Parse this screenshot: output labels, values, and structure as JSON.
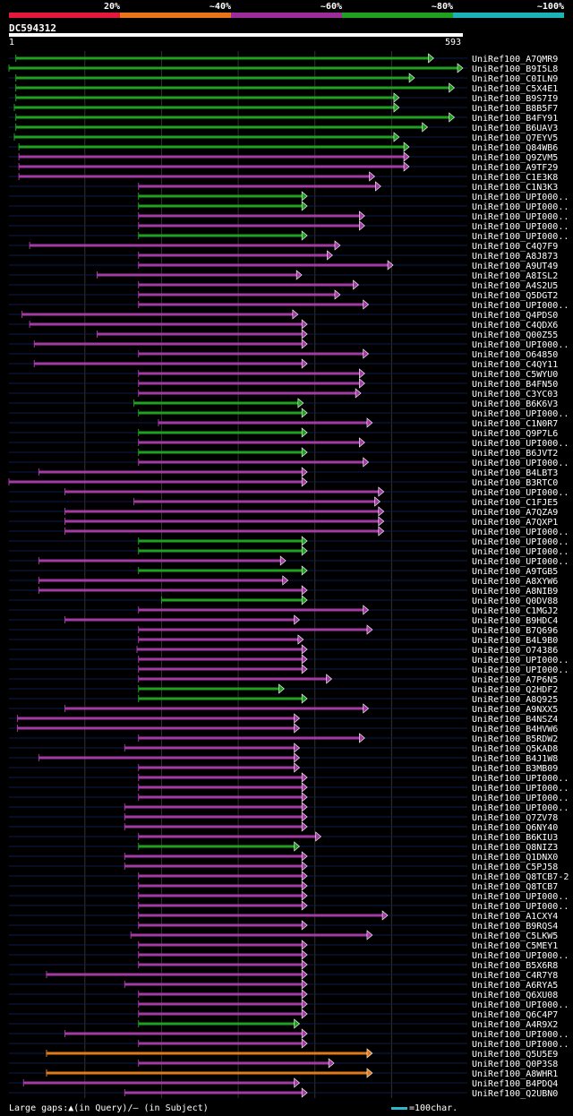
{
  "legend": [
    {
      "label": "20%",
      "color": "#e4183a"
    },
    {
      "label": "~40%",
      "color": "#e87318"
    },
    {
      "label": "~60%",
      "color": "#9b2d9b"
    },
    {
      "label": "~80%",
      "color": "#1fa01f"
    },
    {
      "label": "~100%",
      "color": "#1bb3b8"
    }
  ],
  "query": {
    "id": "DC594312",
    "start": "1",
    "end": "593",
    "length": 593
  },
  "colors": {
    "green": "#1fa01f",
    "purple": "#a43aa4",
    "orange": "#e07a1a",
    "background": "#000000",
    "track": "#0b1a4a",
    "gridline": "#333333"
  },
  "hits": [
    {
      "id": "UniRef100_A7QMR9",
      "start": 10,
      "end": 555,
      "color": "green"
    },
    {
      "id": "UniRef100_B9I5L8",
      "start": 1,
      "end": 593,
      "color": "green"
    },
    {
      "id": "UniRef100_C0ILN9",
      "start": 10,
      "end": 530,
      "color": "green"
    },
    {
      "id": "UniRef100_C5X4E1",
      "start": 10,
      "end": 582,
      "color": "green"
    },
    {
      "id": "UniRef100_B9S7I9",
      "start": 10,
      "end": 510,
      "color": "green"
    },
    {
      "id": "UniRef100_B8B5F7",
      "start": 8,
      "end": 510,
      "color": "green"
    },
    {
      "id": "UniRef100_B4FY91",
      "start": 10,
      "end": 582,
      "color": "green"
    },
    {
      "id": "UniRef100_B6UAV3",
      "start": 10,
      "end": 547,
      "color": "green"
    },
    {
      "id": "UniRef100_Q7EYV5",
      "start": 8,
      "end": 510,
      "color": "green"
    },
    {
      "id": "UniRef100_Q84WB6",
      "start": 14,
      "end": 523,
      "color": "green"
    },
    {
      "id": "UniRef100_Q9ZVM5",
      "start": 14,
      "end": 523,
      "color": "purple"
    },
    {
      "id": "UniRef100_A9TF29",
      "start": 14,
      "end": 523,
      "color": "purple"
    },
    {
      "id": "UniRef100_C1E3K8",
      "start": 14,
      "end": 478,
      "color": "purple"
    },
    {
      "id": "UniRef100_C1N3K3",
      "start": 170,
      "end": 486,
      "color": "purple"
    },
    {
      "id": "UniRef100_UPI000..",
      "start": 170,
      "end": 390,
      "color": "green"
    },
    {
      "id": "UniRef100_UPI000..",
      "start": 170,
      "end": 390,
      "color": "green"
    },
    {
      "id": "UniRef100_UPI000..",
      "start": 170,
      "end": 465,
      "color": "purple"
    },
    {
      "id": "UniRef100_UPI000..",
      "start": 170,
      "end": 465,
      "color": "purple"
    },
    {
      "id": "UniRef100_UPI000..",
      "start": 170,
      "end": 390,
      "color": "green"
    },
    {
      "id": "UniRef100_C4Q7F9",
      "start": 28,
      "end": 433,
      "color": "purple"
    },
    {
      "id": "UniRef100_A8J873",
      "start": 170,
      "end": 423,
      "color": "purple"
    },
    {
      "id": "UniRef100_A9UT49",
      "start": 170,
      "end": 502,
      "color": "purple"
    },
    {
      "id": "UniRef100_A8ISL2",
      "start": 116,
      "end": 383,
      "color": "purple"
    },
    {
      "id": "UniRef100_A4S2U5",
      "start": 170,
      "end": 457,
      "color": "purple"
    },
    {
      "id": "UniRef100_Q5DGT2",
      "start": 170,
      "end": 433,
      "color": "purple"
    },
    {
      "id": "UniRef100_UPI000..",
      "start": 170,
      "end": 470,
      "color": "purple"
    },
    {
      "id": "UniRef100_Q4PDS0",
      "start": 18,
      "end": 378,
      "color": "purple"
    },
    {
      "id": "UniRef100_C4QDX6",
      "start": 28,
      "end": 390,
      "color": "purple"
    },
    {
      "id": "UniRef100_Q00Z55",
      "start": 116,
      "end": 390,
      "color": "purple"
    },
    {
      "id": "UniRef100_UPI000..",
      "start": 34,
      "end": 390,
      "color": "purple"
    },
    {
      "id": "UniRef100_O64850",
      "start": 170,
      "end": 470,
      "color": "purple"
    },
    {
      "id": "UniRef100_C4QY11",
      "start": 34,
      "end": 390,
      "color": "purple"
    },
    {
      "id": "UniRef100_C5WYU0",
      "start": 170,
      "end": 465,
      "color": "purple"
    },
    {
      "id": "UniRef100_B4FN50",
      "start": 170,
      "end": 465,
      "color": "purple"
    },
    {
      "id": "UniRef100_C3YC03",
      "start": 170,
      "end": 460,
      "color": "purple"
    },
    {
      "id": "UniRef100_B6K6V3",
      "start": 164,
      "end": 385,
      "color": "green"
    },
    {
      "id": "UniRef100_UPI000..",
      "start": 170,
      "end": 390,
      "color": "green"
    },
    {
      "id": "UniRef100_C1N0R7",
      "start": 196,
      "end": 475,
      "color": "purple"
    },
    {
      "id": "UniRef100_Q9P7L6",
      "start": 170,
      "end": 390,
      "color": "green"
    },
    {
      "id": "UniRef100_UPI000..",
      "start": 170,
      "end": 465,
      "color": "purple"
    },
    {
      "id": "UniRef100_B6JVT2",
      "start": 170,
      "end": 390,
      "color": "green"
    },
    {
      "id": "UniRef100_UPI000..",
      "start": 170,
      "end": 470,
      "color": "purple"
    },
    {
      "id": "UniRef100_B4LBT3",
      "start": 40,
      "end": 390,
      "color": "purple"
    },
    {
      "id": "UniRef100_B3RTC0",
      "start": 1,
      "end": 390,
      "color": "purple"
    },
    {
      "id": "UniRef100_UPI000..",
      "start": 74,
      "end": 490,
      "color": "purple"
    },
    {
      "id": "UniRef100_C1FJE5",
      "start": 164,
      "end": 485,
      "color": "purple"
    },
    {
      "id": "UniRef100_A7QZA9",
      "start": 74,
      "end": 490,
      "color": "purple"
    },
    {
      "id": "UniRef100_A7QXP1",
      "start": 74,
      "end": 490,
      "color": "purple"
    },
    {
      "id": "UniRef100_UPI000..",
      "start": 74,
      "end": 490,
      "color": "purple"
    },
    {
      "id": "UniRef100_UPI000..",
      "start": 170,
      "end": 390,
      "color": "green"
    },
    {
      "id": "UniRef100_UPI000..",
      "start": 170,
      "end": 390,
      "color": "green"
    },
    {
      "id": "UniRef100_UPI000..",
      "start": 40,
      "end": 362,
      "color": "purple"
    },
    {
      "id": "UniRef100_A9TGB5",
      "start": 170,
      "end": 390,
      "color": "green"
    },
    {
      "id": "UniRef100_A8XYW6",
      "start": 40,
      "end": 365,
      "color": "purple"
    },
    {
      "id": "UniRef100_A8NIB9",
      "start": 40,
      "end": 390,
      "color": "purple"
    },
    {
      "id": "UniRef100_Q0DV88",
      "start": 200,
      "end": 390,
      "color": "green"
    },
    {
      "id": "UniRef100_C1MGJ2",
      "start": 170,
      "end": 470,
      "color": "purple"
    },
    {
      "id": "UniRef100_B9HDC4",
      "start": 74,
      "end": 380,
      "color": "purple"
    },
    {
      "id": "UniRef100_B7Q696",
      "start": 170,
      "end": 475,
      "color": "purple"
    },
    {
      "id": "UniRef100_B4L9B0",
      "start": 170,
      "end": 385,
      "color": "purple"
    },
    {
      "id": "UniRef100_O74386",
      "start": 168,
      "end": 390,
      "color": "purple"
    },
    {
      "id": "UniRef100_UPI000..",
      "start": 170,
      "end": 390,
      "color": "purple"
    },
    {
      "id": "UniRef100_UPI000..",
      "start": 170,
      "end": 390,
      "color": "purple"
    },
    {
      "id": "UniRef100_A7P6N5",
      "start": 170,
      "end": 422,
      "color": "purple"
    },
    {
      "id": "UniRef100_Q2HDF2",
      "start": 170,
      "end": 360,
      "color": "green"
    },
    {
      "id": "UniRef100_A8Q925",
      "start": 170,
      "end": 390,
      "color": "green"
    },
    {
      "id": "UniRef100_A9NXX5",
      "start": 74,
      "end": 470,
      "color": "purple"
    },
    {
      "id": "UniRef100_B4NSZ4",
      "start": 12,
      "end": 380,
      "color": "purple"
    },
    {
      "id": "UniRef100_B4HVW6",
      "start": 12,
      "end": 380,
      "color": "purple"
    },
    {
      "id": "UniRef100_B5RDW2",
      "start": 170,
      "end": 465,
      "color": "purple"
    },
    {
      "id": "UniRef100_Q5KAD8",
      "start": 152,
      "end": 380,
      "color": "purple"
    },
    {
      "id": "UniRef100_B4J1W8",
      "start": 40,
      "end": 380,
      "color": "purple"
    },
    {
      "id": "UniRef100_B3MB09",
      "start": 170,
      "end": 380,
      "color": "purple"
    },
    {
      "id": "UniRef100_UPI000..",
      "start": 170,
      "end": 390,
      "color": "purple"
    },
    {
      "id": "UniRef100_UPI000..",
      "start": 170,
      "end": 390,
      "color": "purple"
    },
    {
      "id": "UniRef100_UPI000..",
      "start": 170,
      "end": 390,
      "color": "purple"
    },
    {
      "id": "UniRef100_UPI000..",
      "start": 152,
      "end": 390,
      "color": "purple"
    },
    {
      "id": "UniRef100_Q7ZV78",
      "start": 152,
      "end": 390,
      "color": "purple"
    },
    {
      "id": "UniRef100_Q6NY40",
      "start": 152,
      "end": 390,
      "color": "purple"
    },
    {
      "id": "UniRef100_B6KIU3",
      "start": 170,
      "end": 408,
      "color": "purple"
    },
    {
      "id": "UniRef100_Q8NIZ3",
      "start": 170,
      "end": 380,
      "color": "green"
    },
    {
      "id": "UniRef100_Q1DNX0",
      "start": 152,
      "end": 390,
      "color": "purple"
    },
    {
      "id": "UniRef100_C5PJ58",
      "start": 152,
      "end": 390,
      "color": "purple"
    },
    {
      "id": "UniRef100_Q8TCB7-2",
      "start": 170,
      "end": 390,
      "color": "purple"
    },
    {
      "id": "UniRef100_Q8TCB7",
      "start": 170,
      "end": 390,
      "color": "purple"
    },
    {
      "id": "UniRef100_UPI000..",
      "start": 170,
      "end": 390,
      "color": "purple"
    },
    {
      "id": "UniRef100_UPI000..",
      "start": 170,
      "end": 390,
      "color": "purple"
    },
    {
      "id": "UniRef100_A1CXY4",
      "start": 170,
      "end": 495,
      "color": "purple"
    },
    {
      "id": "UniRef100_B9RQS4",
      "start": 170,
      "end": 390,
      "color": "purple"
    },
    {
      "id": "UniRef100_C5LKW5",
      "start": 160,
      "end": 475,
      "color": "purple"
    },
    {
      "id": "UniRef100_C5MEY1",
      "start": 170,
      "end": 390,
      "color": "purple"
    },
    {
      "id": "UniRef100_UPI000..",
      "start": 170,
      "end": 390,
      "color": "purple"
    },
    {
      "id": "UniRef100_B5X6R8",
      "start": 170,
      "end": 390,
      "color": "purple"
    },
    {
      "id": "UniRef100_C4R7Y8",
      "start": 50,
      "end": 390,
      "color": "purple"
    },
    {
      "id": "UniRef100_A6RYA5",
      "start": 152,
      "end": 390,
      "color": "purple"
    },
    {
      "id": "UniRef100_Q6XU08",
      "start": 170,
      "end": 390,
      "color": "purple"
    },
    {
      "id": "UniRef100_UPI000..",
      "start": 170,
      "end": 390,
      "color": "purple"
    },
    {
      "id": "UniRef100_Q6C4P7",
      "start": 170,
      "end": 390,
      "color": "purple"
    },
    {
      "id": "UniRef100_A4R9X2",
      "start": 170,
      "end": 380,
      "color": "green"
    },
    {
      "id": "UniRef100_UPI000..",
      "start": 74,
      "end": 390,
      "color": "purple"
    },
    {
      "id": "UniRef100_UPI000..",
      "start": 170,
      "end": 390,
      "color": "purple"
    },
    {
      "id": "UniRef100_Q5U5E9",
      "start": 50,
      "end": 475,
      "color": "orange"
    },
    {
      "id": "UniRef100_Q0P3S8",
      "start": 170,
      "end": 425,
      "color": "purple"
    },
    {
      "id": "UniRef100_A8WHR1",
      "start": 50,
      "end": 475,
      "color": "orange"
    },
    {
      "id": "UniRef100_B4PDQ4",
      "start": 20,
      "end": 380,
      "color": "purple"
    },
    {
      "id": "UniRef100_Q2UBN0",
      "start": 152,
      "end": 390,
      "color": "purple"
    }
  ],
  "footer": {
    "text": "Large gaps:▲(in Query)/– (in Subject)",
    "scale_label": "=100char."
  }
}
